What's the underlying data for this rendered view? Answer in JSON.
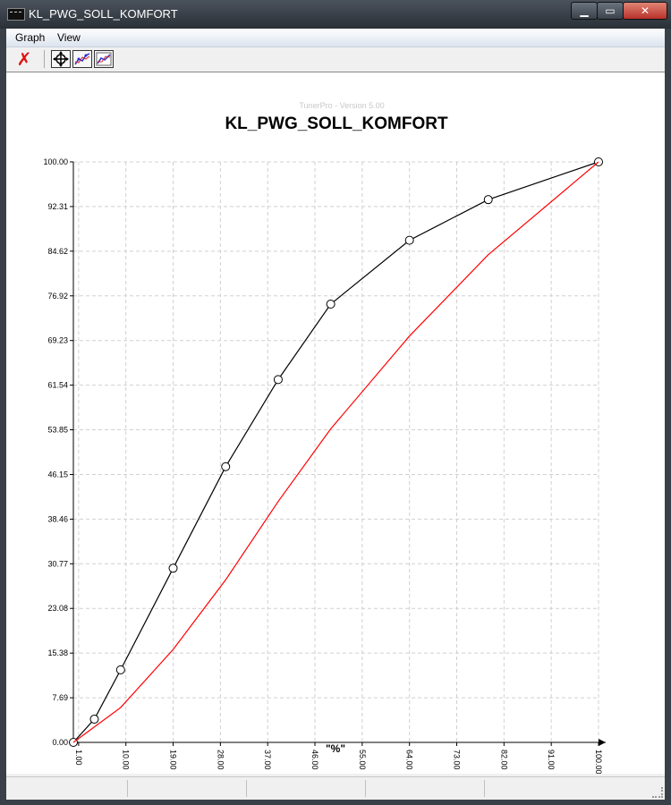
{
  "window": {
    "title": "KL_PWG_SOLL_KOMFORT",
    "min_glyph": "▁",
    "max_glyph": "▭",
    "close_glyph": "✕"
  },
  "menu": {
    "items": [
      {
        "label": "Graph"
      },
      {
        "label": "View"
      }
    ]
  },
  "toolbar": {
    "close_glyph": "✗",
    "buttons": [
      {
        "icon": "move-crosshair-icon"
      },
      {
        "icon": "line-edit-icon"
      },
      {
        "icon": "compare-lines-icon"
      }
    ]
  },
  "watermark": "TunerPro - Version 5.00",
  "chart_data": {
    "type": "line",
    "title": "KL_PWG_SOLL_KOMFORT",
    "xlabel": "\"%\"",
    "ylabel": "",
    "xlim": [
      0,
      100
    ],
    "ylim": [
      0,
      100
    ],
    "x_ticks": [
      "1.00",
      "10.00",
      "19.00",
      "28.00",
      "37.00",
      "46.00",
      "55.00",
      "64.00",
      "73.00",
      "82.00",
      "91.00",
      "100.00"
    ],
    "y_ticks": [
      "0.00",
      "7.69",
      "15.38",
      "23.08",
      "30.77",
      "38.46",
      "46.15",
      "53.85",
      "61.54",
      "69.23",
      "76.92",
      "84.62",
      "92.31",
      "100.00"
    ],
    "grid": true,
    "series": [
      {
        "color": "#000000",
        "markers": true,
        "x": [
          0,
          4,
          9,
          19,
          29,
          39,
          49,
          64,
          79,
          100
        ],
        "y": [
          0,
          4,
          12.5,
          30,
          47.5,
          62.5,
          75.5,
          86.5,
          93.5,
          100
        ]
      },
      {
        "color": "#ff0000",
        "markers": false,
        "x": [
          0,
          9,
          19,
          29,
          39,
          49,
          64,
          79,
          100
        ],
        "y": [
          0,
          6,
          16,
          28,
          41.5,
          54,
          70,
          84,
          100
        ]
      }
    ]
  },
  "statusbar": {
    "cells": [
      "",
      "",
      "",
      ""
    ]
  }
}
